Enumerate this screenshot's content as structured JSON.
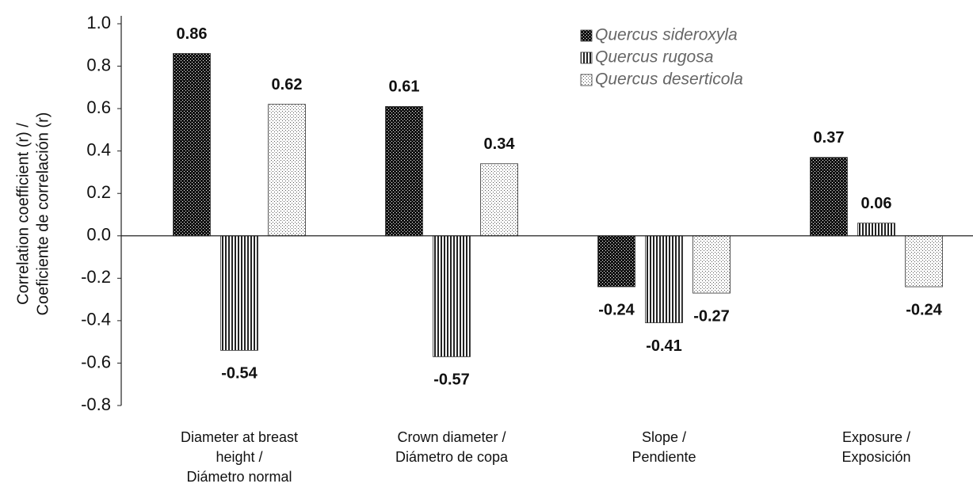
{
  "chart_data": {
    "type": "bar",
    "ylabel": [
      "Correlation coefficient (r) /",
      "Coeficiente de correlación (r)"
    ],
    "categories": [
      [
        "Diameter at breast",
        "height /",
        "Diámetro normal"
      ],
      [
        "Crown diameter /",
        "Diámetro de copa"
      ],
      [
        "Slope /",
        "Pendiente"
      ],
      [
        "Exposure /",
        "Exposición"
      ]
    ],
    "series": [
      {
        "name": "Quercus sideroxyla",
        "color": "#111111",
        "pattern": "checker",
        "values": [
          0.86,
          0.61,
          -0.24,
          0.37
        ]
      },
      {
        "name": "Quercus rugosa",
        "color": "#222222",
        "pattern": "vertical-stripes",
        "values": [
          -0.54,
          -0.57,
          -0.41,
          0.06
        ]
      },
      {
        "name": "Quercus deserticola",
        "color": "#555555",
        "pattern": "dots",
        "values": [
          0.62,
          0.34,
          -0.27,
          -0.24
        ]
      }
    ],
    "ylim": [
      -0.8,
      1.0
    ],
    "yticks": [
      {
        "value": 1.0,
        "label": "1.0"
      },
      {
        "value": 0.8,
        "label": "0.8"
      },
      {
        "value": 0.6,
        "label": "0.6"
      },
      {
        "value": 0.4,
        "label": "0.4"
      },
      {
        "value": 0.2,
        "label": "0.2"
      },
      {
        "value": 0.0,
        "label": "0.0"
      },
      {
        "value": -0.2,
        "label": "-0.2"
      },
      {
        "value": -0.4,
        "label": "-0.4"
      },
      {
        "value": -0.6,
        "label": "-0.6"
      },
      {
        "value": -0.8,
        "label": "-0.8"
      }
    ],
    "grid": false,
    "legend": "upper right"
  }
}
